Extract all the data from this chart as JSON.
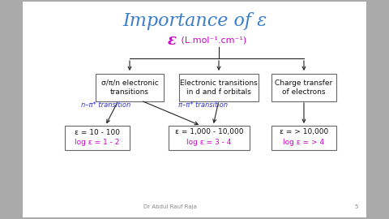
{
  "title": "Importance of ε",
  "title_color": "#3A7DC9",
  "bg_color": "#aaaaaa",
  "epsilon_label_sym": "ε",
  "epsilon_label_rest": " (L.mol⁻¹.cm⁻¹)",
  "epsilon_color": "#CC00CC",
  "box1_text": "σ/π/n electronic\ntransitions",
  "box2_text": "Electronic transitions\nin d and f orbitals",
  "box3_text": "Charge transfer\nof electrons",
  "box1_val_black": "ε = 10 - 100",
  "box1_val_red": "log ε = 1 - 2",
  "box2_val_black": "ε = 1,000 - 10,000",
  "box2_val_red": "log ε = 3 - 4",
  "box3_val_black": "ε = > 10,000",
  "box3_val_red": "log ε = > 4",
  "trans1_label": "n–π* transition",
  "trans2_label": "π–π* transition",
  "trans_color": "#3333CC",
  "arrow_color": "#222222",
  "box_edge_color": "#666666",
  "footer_text": "Dr Abdul Rauf Raja",
  "footer_page": "5",
  "text_color": "#111111",
  "red_color": "#CC00AA",
  "val_text_color": "#CC00CC"
}
